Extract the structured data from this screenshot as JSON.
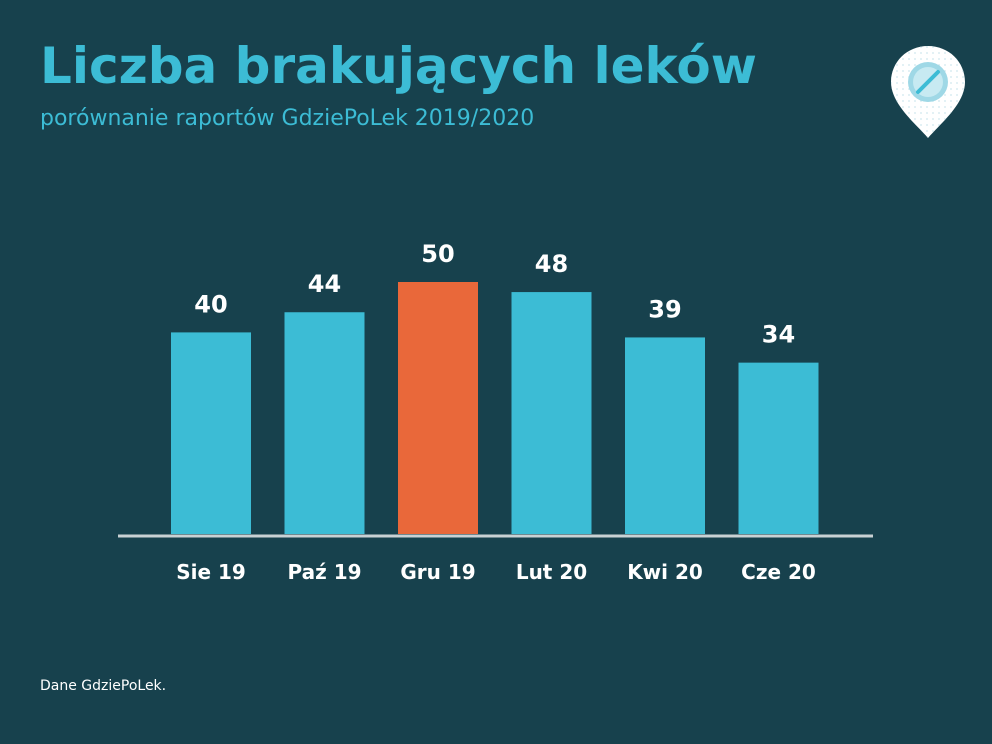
{
  "title": "Liczba brakujących leków",
  "subtitle": "porównanie raportów GdziePoLek 2019/2020",
  "source": "Dane GdziePoLek.",
  "logo_icon": "map-pin-pill-icon",
  "colors": {
    "background": "#17414d",
    "bar": "#3cbcd5",
    "highlight": "#e9683a",
    "text": "#ffffff",
    "axis": "#c9d1d4"
  },
  "chart_data": {
    "type": "bar",
    "title": "Liczba brakujących leków",
    "subtitle": "porównanie raportów GdziePoLek 2019/2020",
    "categories": [
      "Sie 19",
      "Paź 19",
      "Gru 19",
      "Lut 20",
      "Kwi 20",
      "Cze 20"
    ],
    "values": [
      40,
      44,
      50,
      48,
      39,
      34
    ],
    "highlight_index": 2,
    "ylim": [
      0,
      50
    ],
    "xlabel": "",
    "ylabel": "",
    "grid": false,
    "legend": "none"
  }
}
